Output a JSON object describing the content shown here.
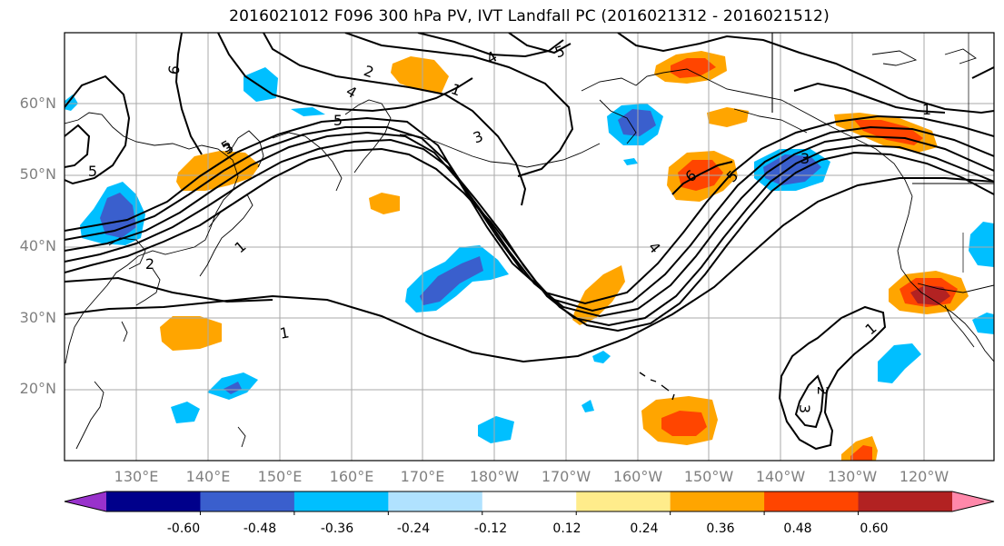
{
  "title": "2016021012 F096 300 hPa PV, IVT Landfall PC (2016021312 - 2016021512)",
  "map": {
    "lat_labels": [
      "60°N",
      "50°N",
      "40°N",
      "30°N",
      "20°N"
    ],
    "lon_labels": [
      "130°E",
      "140°E",
      "150°E",
      "160°E",
      "170°E",
      "180°W",
      "170°W",
      "160°W",
      "150°W",
      "140°W",
      "130°W",
      "120°W"
    ],
    "contour_labels": [
      "6",
      "2",
      "3",
      "5",
      "4",
      "5",
      "5",
      "2",
      "3",
      "4",
      "1",
      "1",
      "5",
      "1",
      "6",
      "5",
      "3",
      "4",
      "1",
      "3",
      "2",
      "1"
    ]
  },
  "colorbar": {
    "tick_labels": [
      "-0.60",
      "-0.48",
      "-0.36",
      "-0.24",
      "-0.12",
      "0.12",
      "0.24",
      "0.36",
      "0.48",
      "0.60"
    ],
    "colors": [
      "#9932CC",
      "#00008B",
      "#3A5FCD",
      "#00BFFF",
      "#B0E2FF",
      "#FFFFFF",
      "#FFEC8B",
      "#FFA500",
      "#FF4500",
      "#B22222",
      "#FF88AA"
    ]
  }
}
